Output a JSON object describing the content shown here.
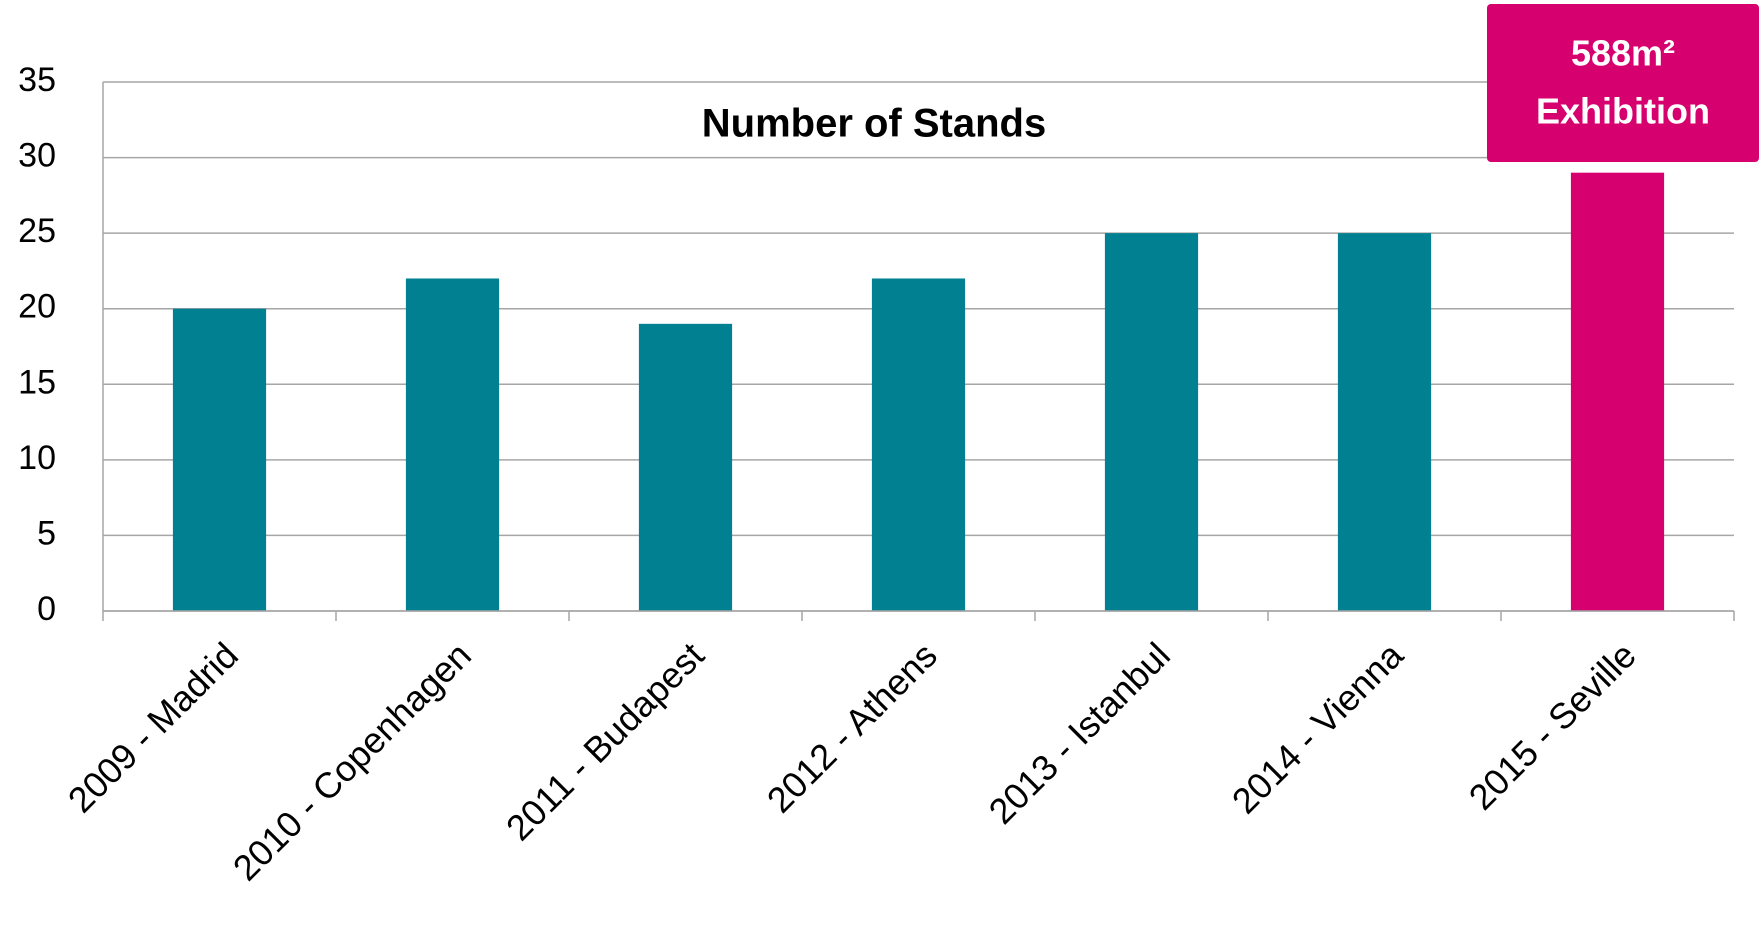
{
  "chart_data": {
    "type": "bar",
    "title": "Number of Stands",
    "categories": [
      "2009 - Madrid",
      "2010 - Copenhagen",
      "2011 - Budapest",
      "2012 - Athens",
      "2013 - Istanbul",
      "2014 - Vienna",
      "2015 - Seville"
    ],
    "values": [
      20,
      22,
      19,
      22,
      25,
      25,
      29
    ],
    "colors": [
      "#008091",
      "#008091",
      "#008091",
      "#008091",
      "#008091",
      "#008091",
      "#d6006e"
    ],
    "ylim": [
      0,
      35
    ],
    "yticks": [
      0,
      5,
      10,
      15,
      20,
      25,
      30,
      35
    ],
    "grid": true,
    "annotation": {
      "lines": [
        "588m²",
        "Exhibition"
      ],
      "color": "#d6006e"
    }
  }
}
